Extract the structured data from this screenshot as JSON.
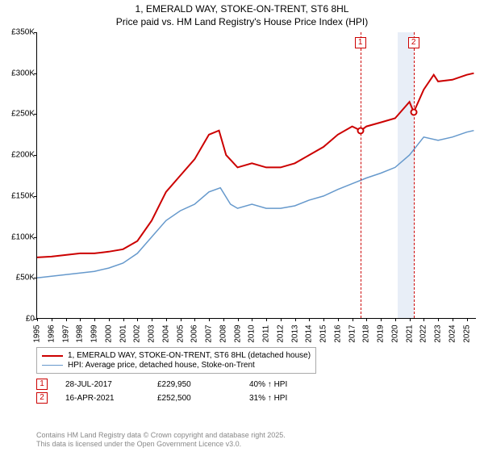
{
  "title_line1": "1, EMERALD WAY, STOKE-ON-TRENT, ST6 8HL",
  "title_line2": "Price paid vs. HM Land Registry's House Price Index (HPI)",
  "chart": {
    "type": "line",
    "x_range": [
      1995,
      2025.7
    ],
    "y_range": [
      0,
      350000
    ],
    "ytick_step": 50000,
    "yticks": [
      "£0",
      "£50K",
      "£100K",
      "£150K",
      "£200K",
      "£250K",
      "£300K",
      "£350K"
    ],
    "xticks": [
      1995,
      1996,
      1997,
      1998,
      1999,
      2000,
      2001,
      2002,
      2003,
      2004,
      2005,
      2006,
      2007,
      2008,
      2009,
      2010,
      2011,
      2012,
      2013,
      2014,
      2015,
      2016,
      2017,
      2018,
      2019,
      2020,
      2021,
      2022,
      2023,
      2024,
      2025
    ],
    "series": [
      {
        "id": "property",
        "color": "#cc0000",
        "width": 2,
        "label": "1, EMERALD WAY, STOKE-ON-TRENT, ST6 8HL (detached house)",
        "points": [
          [
            1995,
            75000
          ],
          [
            1996,
            76000
          ],
          [
            1997,
            78000
          ],
          [
            1998,
            80000
          ],
          [
            1999,
            80000
          ],
          [
            2000,
            82000
          ],
          [
            2001,
            85000
          ],
          [
            2002,
            95000
          ],
          [
            2003,
            120000
          ],
          [
            2004,
            155000
          ],
          [
            2005,
            175000
          ],
          [
            2006,
            195000
          ],
          [
            2007,
            225000
          ],
          [
            2007.7,
            230000
          ],
          [
            2008.2,
            200000
          ],
          [
            2009,
            185000
          ],
          [
            2010,
            190000
          ],
          [
            2011,
            185000
          ],
          [
            2012,
            185000
          ],
          [
            2013,
            190000
          ],
          [
            2014,
            200000
          ],
          [
            2015,
            210000
          ],
          [
            2016,
            225000
          ],
          [
            2017,
            235000
          ],
          [
            2017.6,
            229950
          ],
          [
            2018,
            235000
          ],
          [
            2019,
            240000
          ],
          [
            2020,
            245000
          ],
          [
            2020.5,
            255000
          ],
          [
            2021,
            265000
          ],
          [
            2021.3,
            252500
          ],
          [
            2022,
            280000
          ],
          [
            2022.7,
            298000
          ],
          [
            2023,
            290000
          ],
          [
            2024,
            292000
          ],
          [
            2025,
            298000
          ],
          [
            2025.5,
            300000
          ]
        ]
      },
      {
        "id": "hpi",
        "color": "#6699cc",
        "width": 1.5,
        "label": "HPI: Average price, detached house, Stoke-on-Trent",
        "points": [
          [
            1995,
            50000
          ],
          [
            1996,
            52000
          ],
          [
            1997,
            54000
          ],
          [
            1998,
            56000
          ],
          [
            1999,
            58000
          ],
          [
            2000,
            62000
          ],
          [
            2001,
            68000
          ],
          [
            2002,
            80000
          ],
          [
            2003,
            100000
          ],
          [
            2004,
            120000
          ],
          [
            2005,
            132000
          ],
          [
            2006,
            140000
          ],
          [
            2007,
            155000
          ],
          [
            2007.8,
            160000
          ],
          [
            2008.5,
            140000
          ],
          [
            2009,
            135000
          ],
          [
            2010,
            140000
          ],
          [
            2011,
            135000
          ],
          [
            2012,
            135000
          ],
          [
            2013,
            138000
          ],
          [
            2014,
            145000
          ],
          [
            2015,
            150000
          ],
          [
            2016,
            158000
          ],
          [
            2017,
            165000
          ],
          [
            2018,
            172000
          ],
          [
            2019,
            178000
          ],
          [
            2020,
            185000
          ],
          [
            2021,
            200000
          ],
          [
            2022,
            222000
          ],
          [
            2023,
            218000
          ],
          [
            2024,
            222000
          ],
          [
            2025,
            228000
          ],
          [
            2025.5,
            230000
          ]
        ]
      }
    ],
    "highlight_band": {
      "x_start": 2020.2,
      "x_end": 2021.3,
      "color": "#e8eef7"
    },
    "sale_markers": [
      {
        "n": 1,
        "x": 2017.57,
        "y": 229950,
        "color": "#cc0000"
      },
      {
        "n": 2,
        "x": 2021.29,
        "y": 252500,
        "color": "#cc0000"
      }
    ]
  },
  "legend": {
    "rows": [
      {
        "color": "#cc0000",
        "width": 2,
        "label": "1, EMERALD WAY, STOKE-ON-TRENT, ST6 8HL (detached house)"
      },
      {
        "color": "#6699cc",
        "width": 1.5,
        "label": "HPI: Average price, detached house, Stoke-on-Trent"
      }
    ]
  },
  "sales": [
    {
      "n": "1",
      "color": "#cc0000",
      "date": "28-JUL-2017",
      "price": "£229,950",
      "delta": "40% ↑ HPI"
    },
    {
      "n": "2",
      "color": "#cc0000",
      "date": "16-APR-2021",
      "price": "£252,500",
      "delta": "31% ↑ HPI"
    }
  ],
  "credits_line1": "Contains HM Land Registry data © Crown copyright and database right 2025.",
  "credits_line2": "This data is licensed under the Open Government Licence v3.0."
}
